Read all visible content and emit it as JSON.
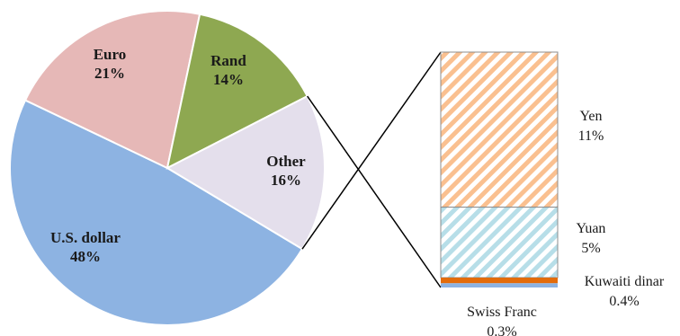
{
  "chart_data": {
    "type": "pie",
    "slices": [
      {
        "name": "U.S. dollar",
        "value": 48,
        "value_label": "48%",
        "color": "#8db3e2"
      },
      {
        "name": "Euro",
        "value": 21,
        "value_label": "21%",
        "color": "#e6b8b7"
      },
      {
        "name": "Rand",
        "value": 14,
        "value_label": "14%",
        "color": "#8ea851"
      },
      {
        "name": "Other",
        "value": 16,
        "value_label": "16%",
        "color": "#e4dfec"
      }
    ],
    "other_breakdown": {
      "type": "stacked_bar",
      "segments": [
        {
          "name": "Yen",
          "value": 11,
          "value_label": "11%",
          "color": "#fac090",
          "pattern": "diagonal-stripes"
        },
        {
          "name": "Yuan",
          "value": 5,
          "value_label": "5%",
          "color": "#b7dee8",
          "pattern": "diagonal-stripes"
        },
        {
          "name": "Kuwaiti dinar",
          "value": 0.4,
          "value_label": "0.4%",
          "color": "#e46c0a"
        },
        {
          "name": "Swiss Franc",
          "value": 0.3,
          "value_label": "0.3%",
          "color": "#8db3e2"
        }
      ]
    }
  }
}
